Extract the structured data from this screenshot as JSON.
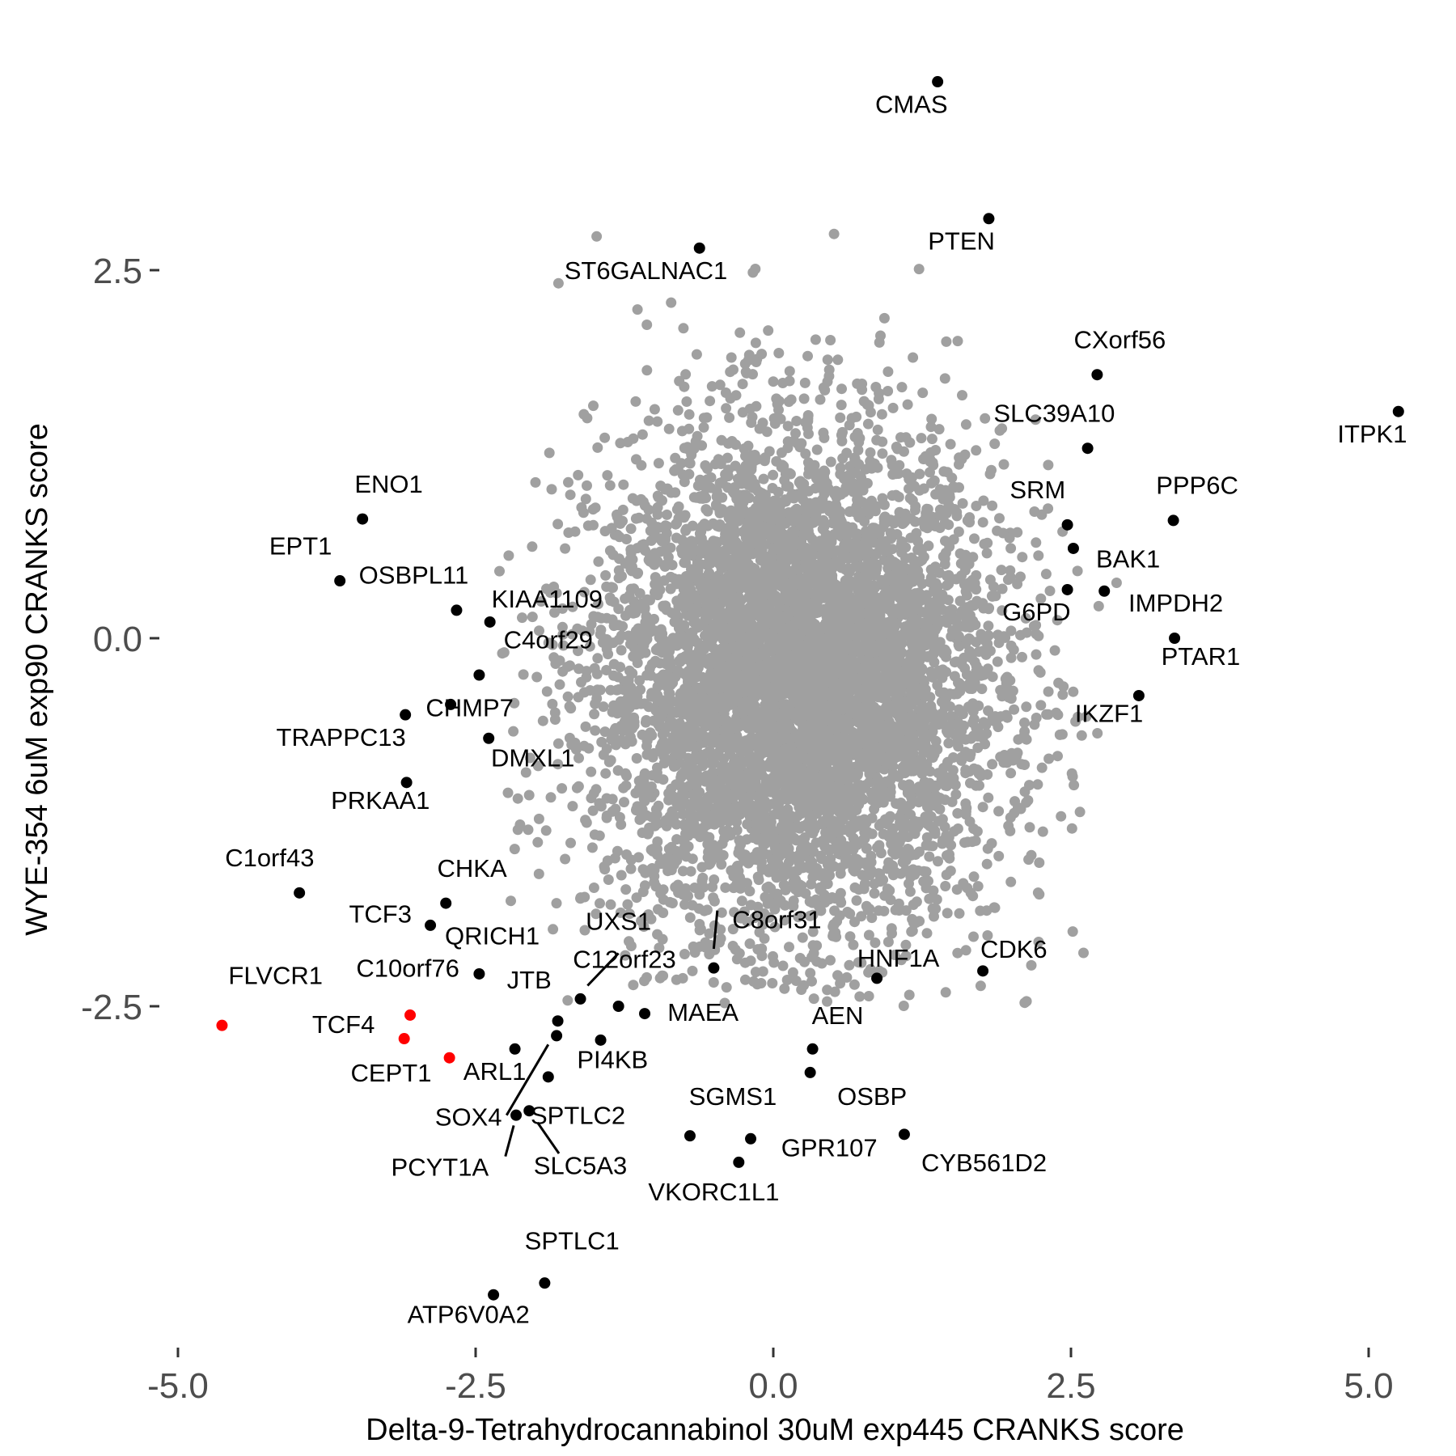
{
  "chart_data": {
    "type": "scatter",
    "xlabel": "Delta-9-Tetrahydrocannabinol 30uM exp445 CRANKS score",
    "ylabel": "WYE-354 6uM exp90 CRANKS score",
    "xlim": [
      -5.3,
      5.3
    ],
    "ylim": [
      -3.6,
      3.8
    ],
    "x_ticks": [
      {
        "value": -5.0,
        "label": "-5.0"
      },
      {
        "value": -2.5,
        "label": "-2.5"
      },
      {
        "value": 0.0,
        "label": "0.0"
      },
      {
        "value": 2.5,
        "label": "2.5"
      },
      {
        "value": 5.0,
        "label": "5.0"
      }
    ],
    "y_ticks": [
      {
        "value": 2.5,
        "label": "2.5"
      },
      {
        "value": 0.0,
        "label": "0.0"
      },
      {
        "value": -2.5,
        "label": "-2.5"
      }
    ],
    "grid": false,
    "colors": {
      "background": "#A0A0A0",
      "highlight": "#000000",
      "special": "#FF0000"
    },
    "background_cloud": {
      "count": 6000,
      "center": [
        0.2,
        -0.3
      ],
      "spread": [
        0.85,
        0.85
      ],
      "range_x": [
        -2.3,
        2.9
      ],
      "range_y": [
        -2.5,
        2.8
      ],
      "color": "#A0A0A0"
    },
    "points": [
      {
        "label": "CMAS",
        "x": 1.38,
        "y": 3.78,
        "color": "#000000"
      },
      {
        "label": "PTEN",
        "x": 1.81,
        "y": 2.85,
        "color": "#000000"
      },
      {
        "label": "ST6GALNAC1",
        "x": -0.62,
        "y": 2.65,
        "color": "#000000"
      },
      {
        "label": "CXorf56",
        "x": 2.72,
        "y": 1.79,
        "color": "#000000"
      },
      {
        "label": "ITPK1",
        "x": 5.25,
        "y": 1.54,
        "color": "#000000"
      },
      {
        "label": "SLC39A10",
        "x": 2.64,
        "y": 1.29,
        "color": "#000000"
      },
      {
        "label": "ENO1",
        "x": -3.45,
        "y": 0.81,
        "color": "#000000"
      },
      {
        "label": "PPP6C",
        "x": 3.36,
        "y": 0.8,
        "color": "#000000"
      },
      {
        "label": "SRM",
        "x": 2.47,
        "y": 0.77,
        "color": "#000000"
      },
      {
        "label": "BAK1",
        "x": 2.52,
        "y": 0.61,
        "color": "#000000"
      },
      {
        "label": "EPT1",
        "x": -3.64,
        "y": 0.39,
        "color": "#000000"
      },
      {
        "label": "G6PD",
        "x": 2.47,
        "y": 0.33,
        "color": "#000000"
      },
      {
        "label": "IMPDH2",
        "x": 2.78,
        "y": 0.32,
        "color": "#000000"
      },
      {
        "label": "OSBPL11",
        "x": -2.66,
        "y": 0.19,
        "color": "#000000"
      },
      {
        "label": "KIAA1109",
        "x": -2.38,
        "y": 0.11,
        "color": "#000000"
      },
      {
        "label": "PTAR1",
        "x": 3.37,
        "y": 0.0,
        "color": "#000000"
      },
      {
        "label": "C4orf29",
        "x": -2.47,
        "y": -0.25,
        "color": "#000000"
      },
      {
        "label": "IKZF1",
        "x": 3.07,
        "y": -0.39,
        "color": "#000000"
      },
      {
        "label": "CHMP7",
        "x": -2.71,
        "y": -0.45,
        "color": "#000000"
      },
      {
        "label": "TRAPPC13",
        "x": -3.09,
        "y": -0.52,
        "color": "#000000"
      },
      {
        "label": "DMXL1",
        "x": -2.39,
        "y": -0.68,
        "color": "#000000"
      },
      {
        "label": "PRKAA1",
        "x": -3.08,
        "y": -0.98,
        "color": "#000000"
      },
      {
        "label": "C1orf43",
        "x": -3.98,
        "y": -1.73,
        "color": "#000000"
      },
      {
        "label": "CHKA",
        "x": -2.75,
        "y": -1.8,
        "color": "#000000"
      },
      {
        "label": "TCF3",
        "x": -2.88,
        "y": -1.95,
        "color": "#000000"
      },
      {
        "label": "HNF1A",
        "x": 0.87,
        "y": -2.31,
        "color": "#000000"
      },
      {
        "label": "CDK6",
        "x": 1.76,
        "y": -2.26,
        "color": "#000000"
      },
      {
        "label": "C8orf31",
        "x": -0.5,
        "y": -2.24,
        "color": "#000000"
      },
      {
        "label": "C10orf76",
        "x": -2.47,
        "y": -2.28,
        "color": "#000000"
      },
      {
        "label": "C12orf23",
        "x": -1.62,
        "y": -2.45,
        "color": "#000000"
      },
      {
        "label": "UXS1",
        "x": -1.3,
        "y": -2.5,
        "color": "#000000"
      },
      {
        "label": "MAEA",
        "x": -1.08,
        "y": -2.55,
        "color": "#000000"
      },
      {
        "label": "JTB",
        "x": -1.81,
        "y": -2.6,
        "color": "#000000"
      },
      {
        "label": "FLVCR1",
        "x": -4.63,
        "y": -2.63,
        "color": "#FF0000"
      },
      {
        "label": "TCF4",
        "x": -3.05,
        "y": -2.56,
        "color": "#FF0000"
      },
      {
        "label": "CEPT1",
        "x": -3.1,
        "y": -2.72,
        "color": "#FF0000"
      },
      {
        "label": "ARL1",
        "x": -1.82,
        "y": -2.7,
        "color": "#000000"
      },
      {
        "label": "PI4KB",
        "x": -1.45,
        "y": -2.73,
        "color": "#000000"
      },
      {
        "label": "AEN",
        "x": 0.33,
        "y": -2.79,
        "color": "#000000"
      },
      {
        "label": "CEPT1_pt",
        "x": -2.72,
        "y": -2.85,
        "color": "#FF0000",
        "hide_label": true
      },
      {
        "label": "ARL1_pt",
        "x": -2.17,
        "y": -2.79,
        "color": "#000000",
        "hide_label": true
      },
      {
        "label": "OSBP",
        "x": 0.31,
        "y": -2.95,
        "color": "#000000"
      },
      {
        "label": "SOX4_pt",
        "x": -1.89,
        "y": -2.98,
        "color": "#000000",
        "hide_label": true
      },
      {
        "label": "SPTLC2",
        "x": -2.05,
        "y": -3.21,
        "color": "#000000"
      },
      {
        "label": "SOX4",
        "x": -2.16,
        "y": -3.24,
        "color": "#000000"
      },
      {
        "label": "SGMS1",
        "x": -0.7,
        "y": -3.38,
        "color": "#000000"
      },
      {
        "label": "GPR107",
        "x": -0.19,
        "y": -3.4,
        "color": "#000000"
      },
      {
        "label": "CYB561D2",
        "x": 1.1,
        "y": -3.37,
        "color": "#000000"
      },
      {
        "label": "VKORC1L1",
        "x": -0.29,
        "y": -3.56,
        "color": "#000000"
      },
      {
        "label": "SPTLC1",
        "x": -1.92,
        "y": -4.38,
        "color": "#000000"
      },
      {
        "label": "ATP6V0A2",
        "x": -2.35,
        "y": -4.46,
        "color": "#000000"
      }
    ],
    "labels": [
      {
        "text": "CMAS",
        "x": 1.16,
        "y": 3.57
      },
      {
        "text": "PTEN",
        "x": 1.58,
        "y": 2.64
      },
      {
        "text": "ST6GALNAC1",
        "x": -1.07,
        "y": 2.44
      },
      {
        "text": "CXorf56",
        "x": 2.91,
        "y": 1.97
      },
      {
        "text": "ITPK1",
        "x": 5.03,
        "y": 1.33
      },
      {
        "text": "SLC39A10",
        "x": 2.36,
        "y": 1.47
      },
      {
        "text": "ENO1",
        "x": -3.23,
        "y": 0.99
      },
      {
        "text": "PPP6C",
        "x": 3.56,
        "y": 0.98
      },
      {
        "text": "SRM",
        "x": 2.22,
        "y": 0.95
      },
      {
        "text": "BAK1",
        "x": 2.98,
        "y": 0.48
      },
      {
        "text": "EPT1",
        "x": -3.97,
        "y": 0.57
      },
      {
        "text": "G6PD",
        "x": 2.21,
        "y": 0.12
      },
      {
        "text": "IMPDH2",
        "x": 3.38,
        "y": 0.18
      },
      {
        "text": "OSBPL11",
        "x": -3.02,
        "y": 0.37
      },
      {
        "text": "KIAA1109",
        "x": -1.9,
        "y": 0.21
      },
      {
        "text": "PTAR1",
        "x": 3.59,
        "y": -0.18
      },
      {
        "text": "C4orf29",
        "x": -1.89,
        "y": -0.07
      },
      {
        "text": "IKZF1",
        "x": 2.82,
        "y": -0.57
      },
      {
        "text": "CHMP7",
        "x": -2.55,
        "y": -0.53
      },
      {
        "text": "TRAPPC13",
        "x": -3.63,
        "y": -0.73
      },
      {
        "text": "DMXL1",
        "x": -2.02,
        "y": -0.87
      },
      {
        "text": "PRKAA1",
        "x": -3.3,
        "y": -1.16
      },
      {
        "text": "C1orf43",
        "x": -4.23,
        "y": -1.55
      },
      {
        "text": "CHKA",
        "x": -2.53,
        "y": -1.62
      },
      {
        "text": "TCF3",
        "x": -3.3,
        "y": -1.93
      },
      {
        "text": "HNF1A",
        "x": 1.05,
        "y": -2.23
      },
      {
        "text": "CDK6",
        "x": 2.02,
        "y": -2.17
      },
      {
        "text": "C8orf31",
        "x": 0.03,
        "y": -1.97
      },
      {
        "text": "QRICH1",
        "x": -2.36,
        "y": -2.08
      },
      {
        "text": "C10orf76",
        "x": -3.07,
        "y": -2.3
      },
      {
        "text": "C12orf23",
        "x": -1.25,
        "y": -2.24
      },
      {
        "text": "UXS1",
        "x": -1.3,
        "y": -1.98
      },
      {
        "text": "MAEA",
        "x": -0.59,
        "y": -2.6
      },
      {
        "text": "JTB",
        "x": -2.05,
        "y": -2.38
      },
      {
        "text": "FLVCR1",
        "x": -4.18,
        "y": -2.35
      },
      {
        "text": "TCF4",
        "x": -3.61,
        "y": -2.68
      },
      {
        "text": "CEPT1",
        "x": -3.21,
        "y": -3.01
      },
      {
        "text": "ARL1",
        "x": -2.34,
        "y": -3.0
      },
      {
        "text": "PI4KB",
        "x": -1.35,
        "y": -2.92
      },
      {
        "text": "AEN",
        "x": 0.54,
        "y": -2.62
      },
      {
        "text": "OSBP",
        "x": 0.83,
        "y": -3.17
      },
      {
        "text": "SPTLC2",
        "x": -1.64,
        "y": -3.3
      },
      {
        "text": "SOX4",
        "x": -2.56,
        "y": -3.31
      },
      {
        "text": "SGMS1",
        "x": -0.34,
        "y": -3.17
      },
      {
        "text": "GPR107",
        "x": 0.47,
        "y": -3.52
      },
      {
        "text": "CYB561D2",
        "x": 1.77,
        "y": -3.62
      },
      {
        "text": "PCYT1A",
        "x": -2.8,
        "y": -3.65
      },
      {
        "text": "SLC5A3",
        "x": -1.62,
        "y": -3.64
      },
      {
        "text": "VKORC1L1",
        "x": -0.5,
        "y": -3.82
      },
      {
        "text": "SPTLC1",
        "x": -1.69,
        "y": -4.15
      },
      {
        "text": "ATP6V0A2",
        "x": -2.56,
        "y": -4.65
      }
    ],
    "connectors": [
      {
        "x1": -1.56,
        "y1": -2.36,
        "x2": -1.3,
        "y2": -2.14
      },
      {
        "x1": -0.5,
        "y1": -2.11,
        "x2": -0.47,
        "y2": -1.85
      },
      {
        "x1": -2.24,
        "y1": -3.24,
        "x2": -1.89,
        "y2": -2.76
      },
      {
        "x1": -2.25,
        "y1": -3.52,
        "x2": -2.18,
        "y2": -3.31
      },
      {
        "x1": -1.8,
        "y1": -3.5,
        "x2": -1.98,
        "y2": -3.29
      }
    ]
  }
}
